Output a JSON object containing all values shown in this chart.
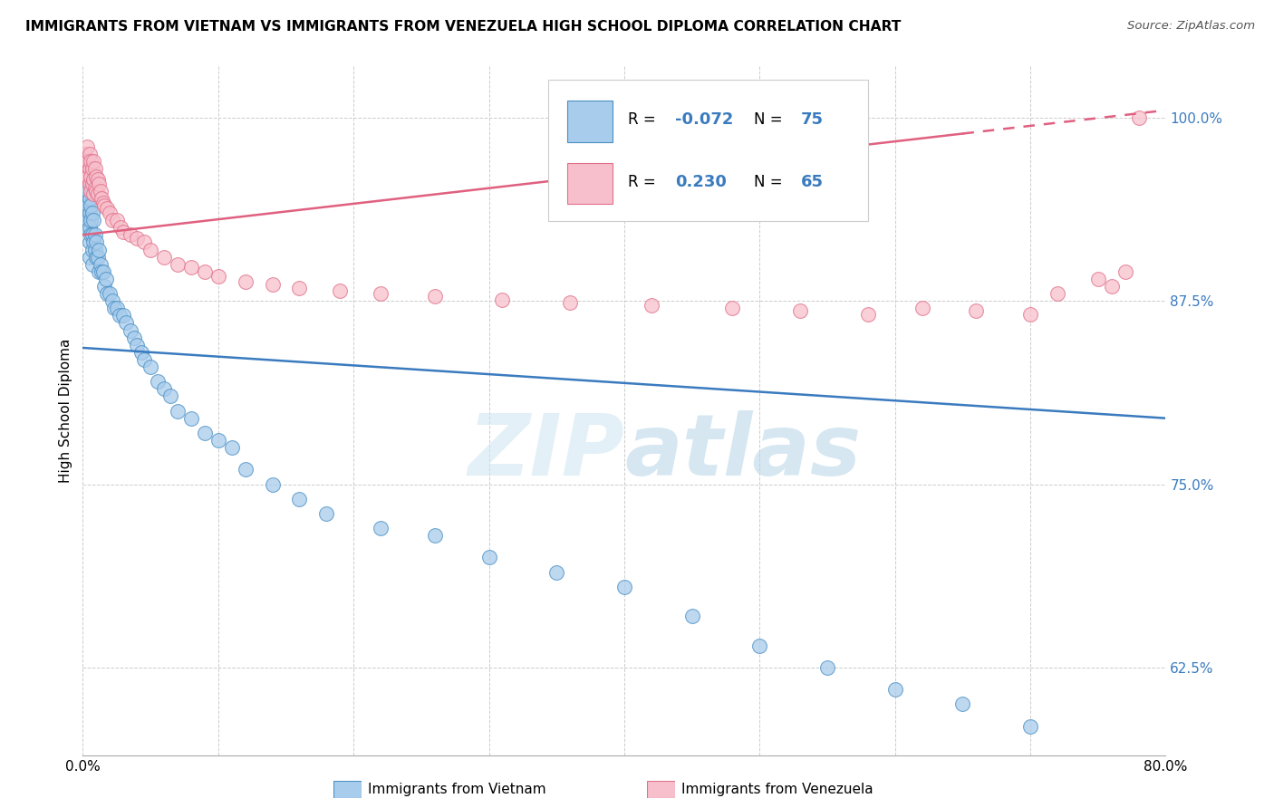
{
  "title": "IMMIGRANTS FROM VIETNAM VS IMMIGRANTS FROM VENEZUELA HIGH SCHOOL DIPLOMA CORRELATION CHART",
  "source": "Source: ZipAtlas.com",
  "ylabel": "High School Diploma",
  "xlim": [
    0.0,
    0.8
  ],
  "ylim": [
    0.565,
    1.035
  ],
  "watermark": "ZIPatlas",
  "blue_fill": "#a8ccec",
  "pink_fill": "#f7bfcb",
  "blue_edge": "#4a90c4",
  "pink_edge": "#e0708a",
  "blue_line_color": "#3a7bbf",
  "pink_line_color": "#e06080",
  "legend_r_blue": "-0.072",
  "legend_n_blue": "75",
  "legend_r_pink": "0.230",
  "legend_n_pink": "65",
  "ytick_positions": [
    0.625,
    0.75,
    0.875,
    1.0
  ],
  "ytick_labels": [
    "62.5%",
    "75.0%",
    "87.5%",
    "100.0%"
  ],
  "vietnam_x": [
    0.001,
    0.001,
    0.002,
    0.002,
    0.002,
    0.003,
    0.003,
    0.003,
    0.003,
    0.004,
    0.004,
    0.004,
    0.005,
    0.005,
    0.005,
    0.005,
    0.005,
    0.006,
    0.006,
    0.006,
    0.007,
    0.007,
    0.007,
    0.007,
    0.008,
    0.008,
    0.009,
    0.009,
    0.01,
    0.01,
    0.011,
    0.012,
    0.012,
    0.013,
    0.014,
    0.015,
    0.016,
    0.017,
    0.018,
    0.02,
    0.022,
    0.023,
    0.025,
    0.027,
    0.03,
    0.032,
    0.035,
    0.038,
    0.04,
    0.043,
    0.045,
    0.05,
    0.055,
    0.06,
    0.065,
    0.07,
    0.08,
    0.09,
    0.1,
    0.11,
    0.12,
    0.14,
    0.16,
    0.18,
    0.22,
    0.26,
    0.3,
    0.35,
    0.4,
    0.45,
    0.5,
    0.55,
    0.6,
    0.65,
    0.7
  ],
  "vietnam_y": [
    0.965,
    0.94,
    0.96,
    0.945,
    0.935,
    0.955,
    0.945,
    0.935,
    0.925,
    0.95,
    0.94,
    0.93,
    0.945,
    0.935,
    0.925,
    0.915,
    0.905,
    0.94,
    0.93,
    0.92,
    0.935,
    0.92,
    0.91,
    0.9,
    0.93,
    0.915,
    0.92,
    0.91,
    0.915,
    0.905,
    0.905,
    0.91,
    0.895,
    0.9,
    0.895,
    0.895,
    0.885,
    0.89,
    0.88,
    0.88,
    0.875,
    0.87,
    0.87,
    0.865,
    0.865,
    0.86,
    0.855,
    0.85,
    0.845,
    0.84,
    0.835,
    0.83,
    0.82,
    0.815,
    0.81,
    0.8,
    0.795,
    0.785,
    0.78,
    0.775,
    0.76,
    0.75,
    0.74,
    0.73,
    0.72,
    0.715,
    0.7,
    0.69,
    0.68,
    0.66,
    0.64,
    0.625,
    0.61,
    0.6,
    0.585
  ],
  "venezuela_x": [
    0.001,
    0.002,
    0.002,
    0.003,
    0.003,
    0.003,
    0.004,
    0.004,
    0.005,
    0.005,
    0.005,
    0.006,
    0.006,
    0.006,
    0.007,
    0.007,
    0.008,
    0.008,
    0.008,
    0.009,
    0.009,
    0.01,
    0.01,
    0.011,
    0.011,
    0.012,
    0.013,
    0.014,
    0.015,
    0.016,
    0.018,
    0.02,
    0.022,
    0.025,
    0.028,
    0.03,
    0.035,
    0.04,
    0.045,
    0.05,
    0.06,
    0.07,
    0.08,
    0.09,
    0.1,
    0.12,
    0.14,
    0.16,
    0.19,
    0.22,
    0.26,
    0.31,
    0.36,
    0.42,
    0.48,
    0.53,
    0.58,
    0.62,
    0.66,
    0.7,
    0.72,
    0.75,
    0.76,
    0.77,
    0.78
  ],
  "venezuela_y": [
    0.96,
    0.975,
    0.965,
    0.98,
    0.97,
    0.96,
    0.97,
    0.96,
    0.975,
    0.965,
    0.955,
    0.97,
    0.96,
    0.95,
    0.965,
    0.955,
    0.97,
    0.958,
    0.948,
    0.965,
    0.952,
    0.96,
    0.95,
    0.958,
    0.948,
    0.955,
    0.95,
    0.945,
    0.942,
    0.94,
    0.938,
    0.935,
    0.93,
    0.93,
    0.925,
    0.922,
    0.92,
    0.918,
    0.915,
    0.91,
    0.905,
    0.9,
    0.898,
    0.895,
    0.892,
    0.888,
    0.886,
    0.884,
    0.882,
    0.88,
    0.878,
    0.876,
    0.874,
    0.872,
    0.87,
    0.868,
    0.866,
    0.87,
    0.868,
    0.866,
    0.88,
    0.89,
    0.885,
    0.895,
    1.0
  ]
}
